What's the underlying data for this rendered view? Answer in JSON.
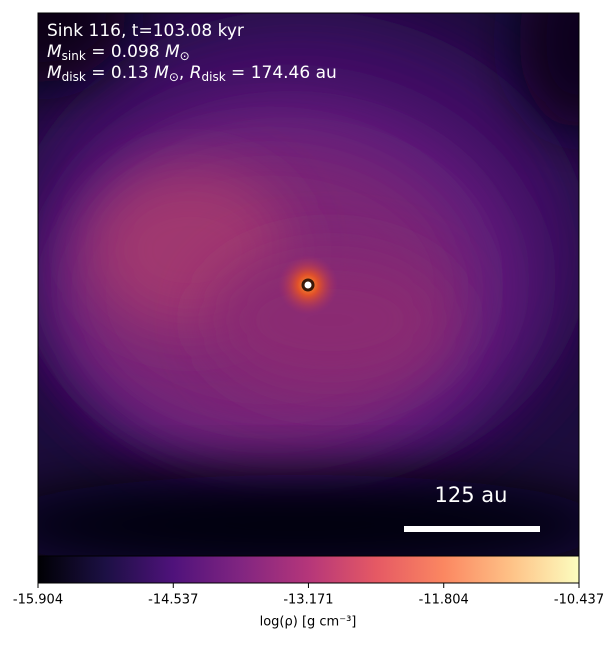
{
  "chart_data": {
    "type": "image",
    "annotations": [
      [
        {
          "text": "Sink 116, t=103.08 kyr"
        }
      ],
      [
        {
          "text": "M",
          "style": "italic"
        },
        {
          "text": "sink",
          "style": "sub"
        },
        {
          "text": " = 0.098 "
        },
        {
          "text": "M",
          "style": "italic"
        },
        {
          "text": "⊙",
          "style": "sub"
        }
      ],
      [
        {
          "text": "M",
          "style": "italic"
        },
        {
          "text": "disk",
          "style": "sub"
        },
        {
          "text": " = 0.13 "
        },
        {
          "text": "M",
          "style": "italic"
        },
        {
          "text": "⊙",
          "style": "sub"
        },
        {
          "text": ", "
        },
        {
          "text": "R",
          "style": "italic"
        },
        {
          "text": "disk",
          "style": "sub"
        },
        {
          "text": " = 174.46 au"
        }
      ]
    ],
    "scale_bar_label": "125 au",
    "colormap": "magma",
    "colorbar": {
      "label": "log(ρ) [g cm⁻³]",
      "lim": [
        -15.904,
        -10.437
      ],
      "ticks": [
        -15.904,
        -14.537,
        -13.171,
        -11.804,
        -10.437
      ]
    }
  }
}
